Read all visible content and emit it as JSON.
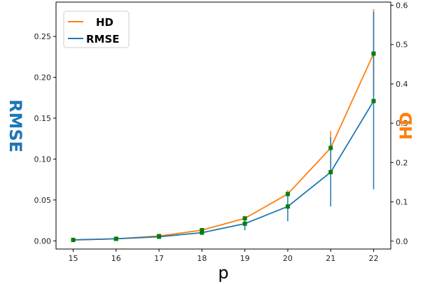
{
  "chart_data": {
    "type": "line",
    "xlabel": "p",
    "ylabel_left": "RMSE",
    "ylabel_right": "HD",
    "x": [
      15,
      16,
      17,
      18,
      19,
      20,
      21,
      22
    ],
    "x_ticks": [
      "15",
      "16",
      "17",
      "18",
      "19",
      "20",
      "21",
      "22"
    ],
    "xlim": [
      14.6,
      22.4
    ],
    "ylim_left": [
      -0.01,
      0.292
    ],
    "ylim_right": [
      -0.02,
      0.608
    ],
    "y_ticks_left": [
      "0.00",
      "0.05",
      "0.10",
      "0.15",
      "0.20",
      "0.25"
    ],
    "y_ticks_right": [
      "0.0",
      "0.1",
      "0.2",
      "0.3",
      "0.4",
      "0.5",
      "0.6"
    ],
    "legend_position": "top-left",
    "grid": false,
    "series": [
      {
        "name": "HD",
        "axis": "right",
        "color": "#ff7f0e",
        "values": [
          0.003,
          0.006,
          0.013,
          0.028,
          0.058,
          0.12,
          0.237,
          0.477
        ],
        "error_low": [
          0.0025,
          0.0055,
          0.012,
          0.026,
          0.054,
          0.112,
          0.19,
          0.37
        ],
        "error_high": [
          0.0035,
          0.0065,
          0.014,
          0.03,
          0.062,
          0.13,
          0.28,
          0.59
        ]
      },
      {
        "name": "RMSE",
        "axis": "left",
        "color": "#1f77b4",
        "values": [
          0.0012,
          0.0025,
          0.005,
          0.01,
          0.021,
          0.042,
          0.084,
          0.171
        ],
        "error_low": [
          0.001,
          0.0022,
          0.0045,
          0.009,
          0.013,
          0.024,
          0.042,
          0.063
        ],
        "error_high": [
          0.0015,
          0.003,
          0.0058,
          0.012,
          0.026,
          0.056,
          0.127,
          0.28
        ]
      }
    ],
    "marker_color": "#008000",
    "axis_label_colors": {
      "left": "#1f77b4",
      "right": "#ff7f0e",
      "bottom": "#000000"
    }
  }
}
